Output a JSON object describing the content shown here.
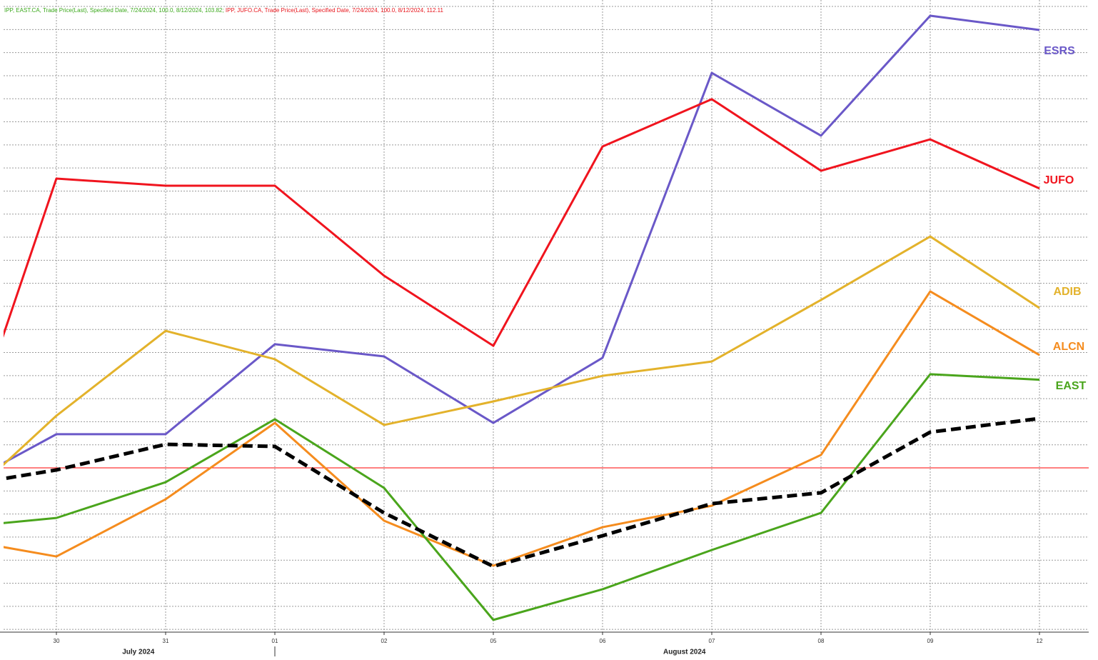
{
  "chart_data": {
    "type": "line",
    "header": [
      "IPP, EAST.CA, Trade Price(Last), Specified Date, 7/24/2024, 100.0, 8/12/2024, 103.82;",
      "IPP, JUFO.CA, Trade Price(Last), Specified Date, 7/24/2024, 100.0, 8/12/2024, 112.11"
    ],
    "header_colors": [
      "#3aa81a",
      "#e8141a"
    ],
    "categories": [
      null,
      "30",
      "31",
      "01",
      "02",
      "05",
      "06",
      "07",
      "08",
      "09",
      "12"
    ],
    "months": [
      {
        "label": "July 2024",
        "at": 1.75
      },
      {
        "label": "August 2024",
        "at": 6.75
      }
    ],
    "month_separator": 3,
    "series": [
      {
        "name": "ESRS",
        "color": "#6a58c8",
        "values": [
          98.89,
          101.46,
          101.46,
          105.36,
          104.83,
          101.95,
          104.77,
          117.12,
          114.4,
          119.6,
          118.98
        ]
      },
      {
        "name": "JUFO",
        "color": "#f0141e",
        "values": [
          98.58,
          112.54,
          112.23,
          112.23,
          108.33,
          105.29,
          113.93,
          115.98,
          112.88,
          114.24,
          112.11
        ]
      },
      {
        "name": "ADIB",
        "color": "#e3b22b",
        "values": [
          97.89,
          102.26,
          105.94,
          104.71,
          101.86,
          102.88,
          103.99,
          104.61,
          107.28,
          110.03,
          106.93
        ]
      },
      {
        "name": "ALCN",
        "color": "#f58c1e",
        "values": [
          97.0,
          96.16,
          98.64,
          101.95,
          97.71,
          95.76,
          97.43,
          98.36,
          100.56,
          107.65,
          104.89
        ]
      },
      {
        "name": "EAST",
        "color": "#4aa51c",
        "values": [
          97.37,
          97.83,
          99.38,
          102.11,
          99.13,
          93.41,
          94.74,
          96.44,
          98.05,
          104.06,
          103.82
        ]
      },
      {
        "color": "#000000",
        "dashed": true,
        "values": [
          99.13,
          99.91,
          101.02,
          100.93,
          98.05,
          95.73,
          97.06,
          98.45,
          98.92,
          101.55,
          102.14
        ]
      }
    ],
    "reference_line": {
      "value": 100,
      "color": "#ff0000"
    },
    "ylim": [
      92.88,
      120.28
    ],
    "yticks": [
      93,
      94,
      95,
      96,
      97,
      98,
      99,
      100,
      101,
      102,
      103,
      104,
      105,
      106,
      107,
      108,
      109,
      110,
      111,
      112,
      113,
      114,
      115,
      116,
      117,
      118,
      119,
      120
    ],
    "grid": true
  }
}
